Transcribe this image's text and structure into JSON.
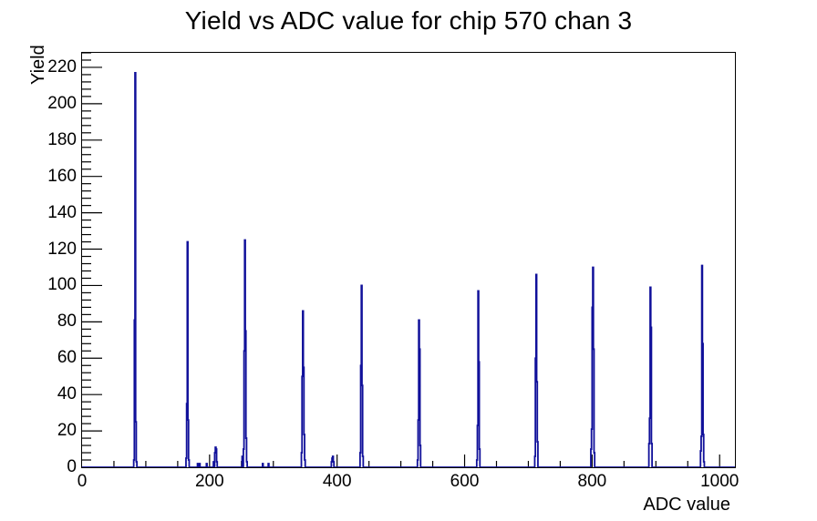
{
  "title": "Yield vs ADC value for chip 570 chan 3",
  "colors": {
    "hist_line": "#10109a",
    "axis": "#000000",
    "text": "#000000",
    "background": "#ffffff"
  },
  "chart_data": {
    "type": "bar",
    "title": "Yield vs ADC value for chip 570 chan 3",
    "xlabel": "ADC value",
    "ylabel": "Yield",
    "xlim": [
      0,
      1024
    ],
    "ylim": [
      0,
      228
    ],
    "bin_width": 1,
    "grid": false,
    "legend": null,
    "x_major_ticks": [
      0,
      200,
      400,
      600,
      800,
      1000
    ],
    "x_minor_step": 50,
    "y_major_ticks": [
      0,
      20,
      40,
      60,
      80,
      100,
      120,
      140,
      160,
      180,
      200,
      220
    ],
    "y_minor_step": 4,
    "bins": [
      [
        81,
        4
      ],
      [
        82,
        81
      ],
      [
        83,
        217
      ],
      [
        84,
        25
      ],
      [
        85,
        3
      ],
      [
        163,
        5
      ],
      [
        164,
        35
      ],
      [
        165,
        124
      ],
      [
        166,
        26
      ],
      [
        167,
        4
      ],
      [
        181,
        2
      ],
      [
        184,
        2
      ],
      [
        195,
        2
      ],
      [
        206,
        3
      ],
      [
        208,
        8
      ],
      [
        209,
        11
      ],
      [
        210,
        10
      ],
      [
        211,
        3
      ],
      [
        251,
        6
      ],
      [
        253,
        10
      ],
      [
        254,
        64
      ],
      [
        255,
        125
      ],
      [
        256,
        75
      ],
      [
        257,
        16
      ],
      [
        258,
        3
      ],
      [
        283,
        2
      ],
      [
        292,
        2
      ],
      [
        344,
        8
      ],
      [
        345,
        50
      ],
      [
        346,
        86
      ],
      [
        347,
        55
      ],
      [
        348,
        18
      ],
      [
        349,
        4
      ],
      [
        391,
        3
      ],
      [
        392,
        5
      ],
      [
        393,
        6
      ],
      [
        394,
        3
      ],
      [
        436,
        8
      ],
      [
        437,
        56
      ],
      [
        438,
        100
      ],
      [
        439,
        45
      ],
      [
        440,
        6
      ],
      [
        526,
        4
      ],
      [
        527,
        26
      ],
      [
        528,
        81
      ],
      [
        529,
        65
      ],
      [
        530,
        12
      ],
      [
        619,
        4
      ],
      [
        620,
        23
      ],
      [
        621,
        97
      ],
      [
        622,
        58
      ],
      [
        623,
        10
      ],
      [
        710,
        6
      ],
      [
        711,
        60
      ],
      [
        712,
        106
      ],
      [
        713,
        47
      ],
      [
        714,
        14
      ],
      [
        798,
        10
      ],
      [
        799,
        21
      ],
      [
        800,
        88
      ],
      [
        801,
        110
      ],
      [
        802,
        65
      ],
      [
        803,
        8
      ],
      [
        889,
        13
      ],
      [
        890,
        27
      ],
      [
        891,
        99
      ],
      [
        892,
        77
      ],
      [
        893,
        13
      ],
      [
        970,
        9
      ],
      [
        971,
        17
      ],
      [
        972,
        111
      ],
      [
        973,
        68
      ],
      [
        974,
        18
      ],
      [
        975,
        3
      ]
    ]
  }
}
